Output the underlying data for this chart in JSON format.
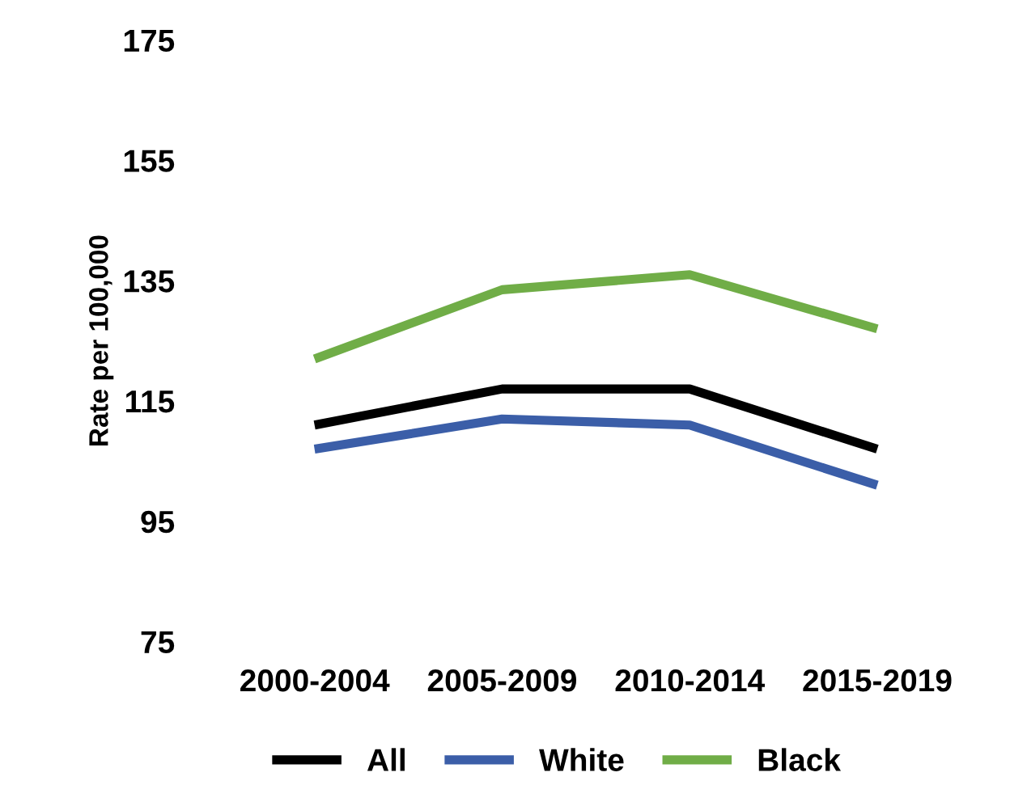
{
  "chart_data": {
    "type": "line",
    "ylabel": "Rate per 100,000",
    "categories": [
      "2000-2004",
      "2005-2009",
      "2010-2014",
      "2015-2019"
    ],
    "series": [
      {
        "name": "All",
        "color": "#000000",
        "values": [
          111,
          117,
          117,
          107
        ]
      },
      {
        "name": "White",
        "color": "#3b5ea8",
        "values": [
          107,
          112,
          111,
          101
        ]
      },
      {
        "name": "Black",
        "color": "#70ad47",
        "values": [
          122,
          133.5,
          136,
          127
        ]
      }
    ],
    "ylim": [
      75,
      175
    ],
    "yticks": [
      75,
      95,
      115,
      135,
      155,
      175
    ],
    "grid": false,
    "legend": "bottom",
    "marker": "none",
    "line_style": "solid"
  }
}
